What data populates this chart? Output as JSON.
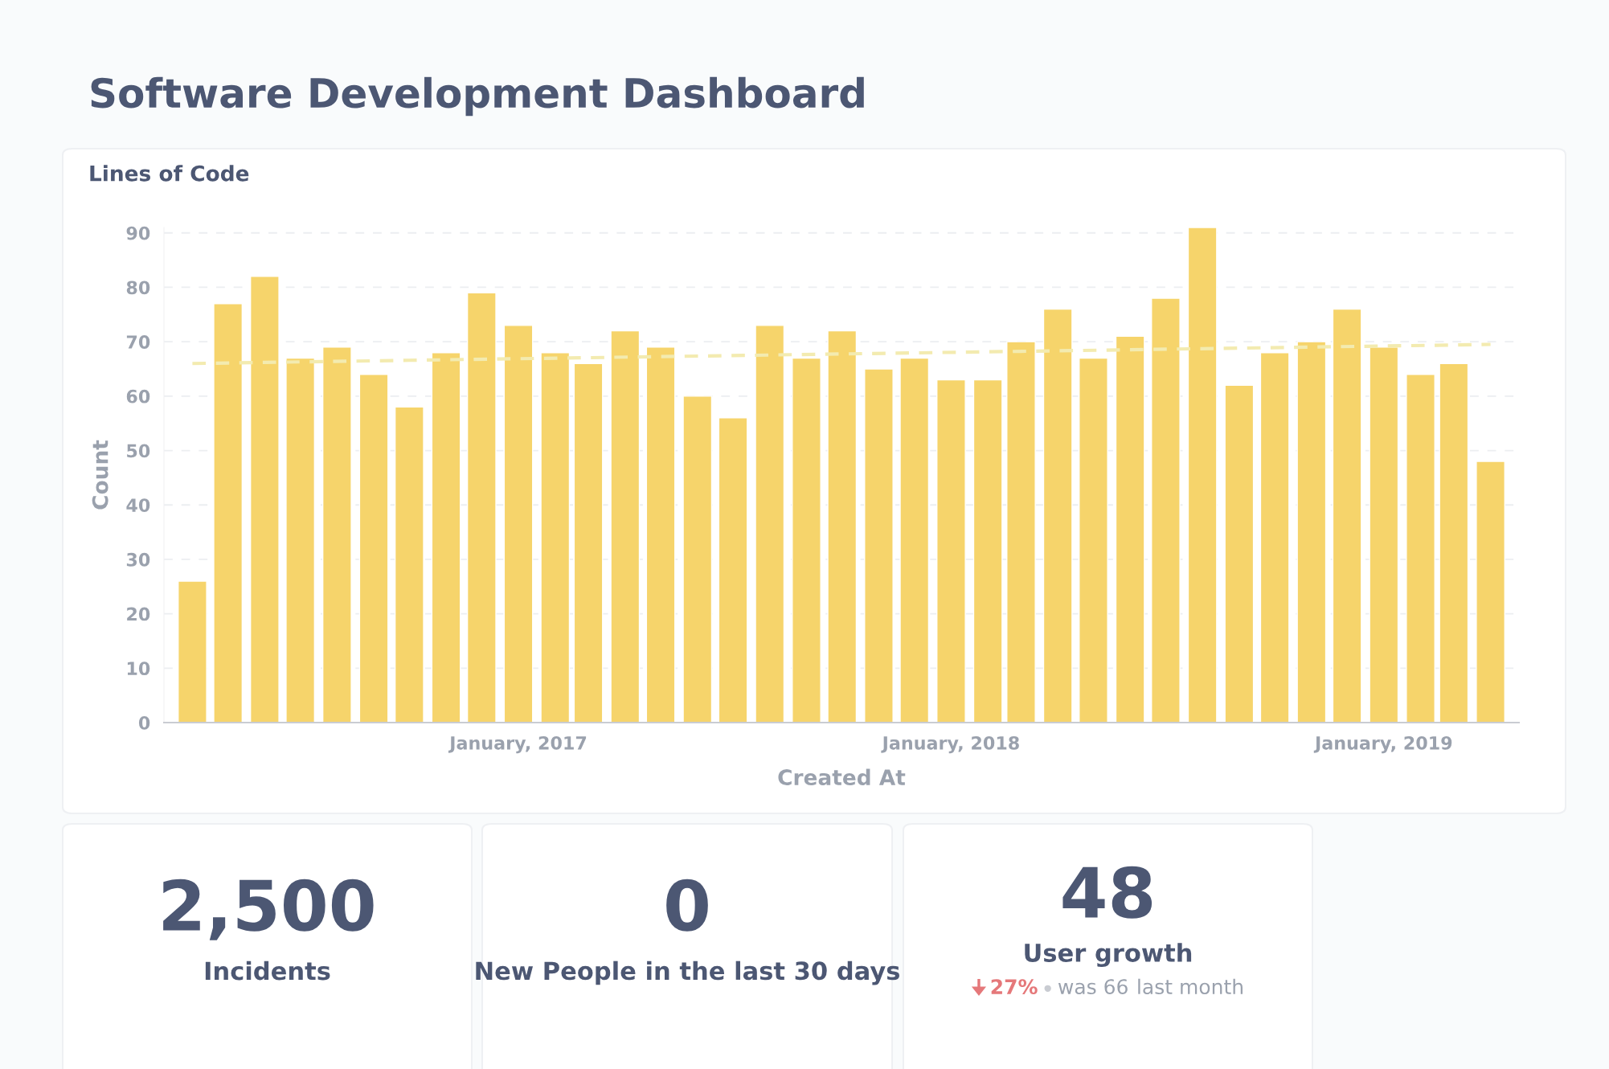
{
  "chart_data": [
    {
      "type": "other",
      "title": "Software Development Dashboard"
    },
    {
      "type": "bar",
      "title": "Lines of Code",
      "xlabel": "Created At",
      "ylabel": "Count",
      "x": [
        "2016-04",
        "2016-05",
        "2016-06",
        "2016-07",
        "2016-08",
        "2016-09",
        "2016-10",
        "2016-11",
        "2016-12",
        "2017-01",
        "2017-02",
        "2017-03",
        "2017-04",
        "2017-05",
        "2017-06",
        "2017-07",
        "2017-08",
        "2017-09",
        "2017-10",
        "2017-11",
        "2017-12",
        "2018-01",
        "2018-02",
        "2018-03",
        "2018-04",
        "2018-05",
        "2018-06",
        "2018-07",
        "2018-08",
        "2018-09",
        "2018-10",
        "2018-11",
        "2018-12",
        "2019-01",
        "2019-02",
        "2019-03",
        "2019-04"
      ],
      "series": [
        {
          "type": "bar",
          "color": "#f6d46b",
          "values": [
            26,
            77,
            82,
            67,
            69,
            64,
            58,
            68,
            79,
            73,
            68,
            66,
            72,
            69,
            60,
            56,
            73,
            67,
            72,
            65,
            67,
            63,
            63,
            70,
            76,
            67,
            71,
            78,
            91,
            62,
            68,
            70,
            76,
            69,
            64,
            66,
            48
          ]
        },
        {
          "type": "line",
          "color": "#f3ebb0",
          "line_style": "dashed",
          "x": [
            "2016-04",
            "2019-04"
          ],
          "values": [
            66,
            69.5
          ]
        }
      ],
      "xlim": [
        "2016-03-08",
        "2019-04-25"
      ],
      "xticks": [
        {
          "value": "2017-01",
          "label": "January, 2017"
        },
        {
          "value": "2018-01",
          "label": "January, 2018"
        },
        {
          "value": "2019-01",
          "label": "January, 2019"
        }
      ],
      "ylim": [
        0,
        91
      ],
      "yticks": [
        0,
        10,
        20,
        30,
        40,
        50,
        60,
        70,
        80,
        90
      ],
      "grid": "y"
    },
    {
      "type": "other",
      "annotations": [
        "2,500",
        "Incidents"
      ]
    },
    {
      "type": "other",
      "annotations": [
        "0",
        "New People in the last 30 days"
      ]
    },
    {
      "type": "other",
      "annotations": [
        "48",
        "User growth",
        "27%",
        "was 66",
        "last month"
      ]
    }
  ]
}
